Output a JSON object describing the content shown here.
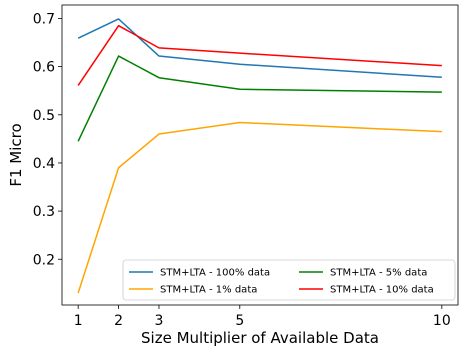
{
  "chart_data": {
    "type": "line",
    "xlabel": "Size Multiplier of Available Data",
    "ylabel": "F1 Micro",
    "x": [
      1,
      2,
      3,
      5,
      10
    ],
    "xticks": [
      1,
      2,
      3,
      5,
      10
    ],
    "yticks": [
      0.2,
      0.3,
      0.4,
      0.5,
      0.6,
      0.7
    ],
    "xlim": [
      0.6,
      10.4
    ],
    "ylim": [
      0.105,
      0.728
    ],
    "grid": false,
    "legend_position": "lower-right",
    "series": [
      {
        "name": "STM+LTA - 100% data",
        "color": "#1f77b4",
        "values": [
          0.659,
          0.699,
          0.622,
          0.605,
          0.578
        ]
      },
      {
        "name": "STM+LTA - 1% data",
        "color": "#ffa500",
        "values": [
          0.13,
          0.39,
          0.46,
          0.484,
          0.465
        ]
      },
      {
        "name": "STM+LTA - 5% data",
        "color": "#008000",
        "values": [
          0.445,
          0.622,
          0.577,
          0.553,
          0.547
        ]
      },
      {
        "name": "STM+LTA - 10% data",
        "color": "#ff0000",
        "values": [
          0.561,
          0.685,
          0.639,
          0.628,
          0.602
        ]
      }
    ]
  }
}
